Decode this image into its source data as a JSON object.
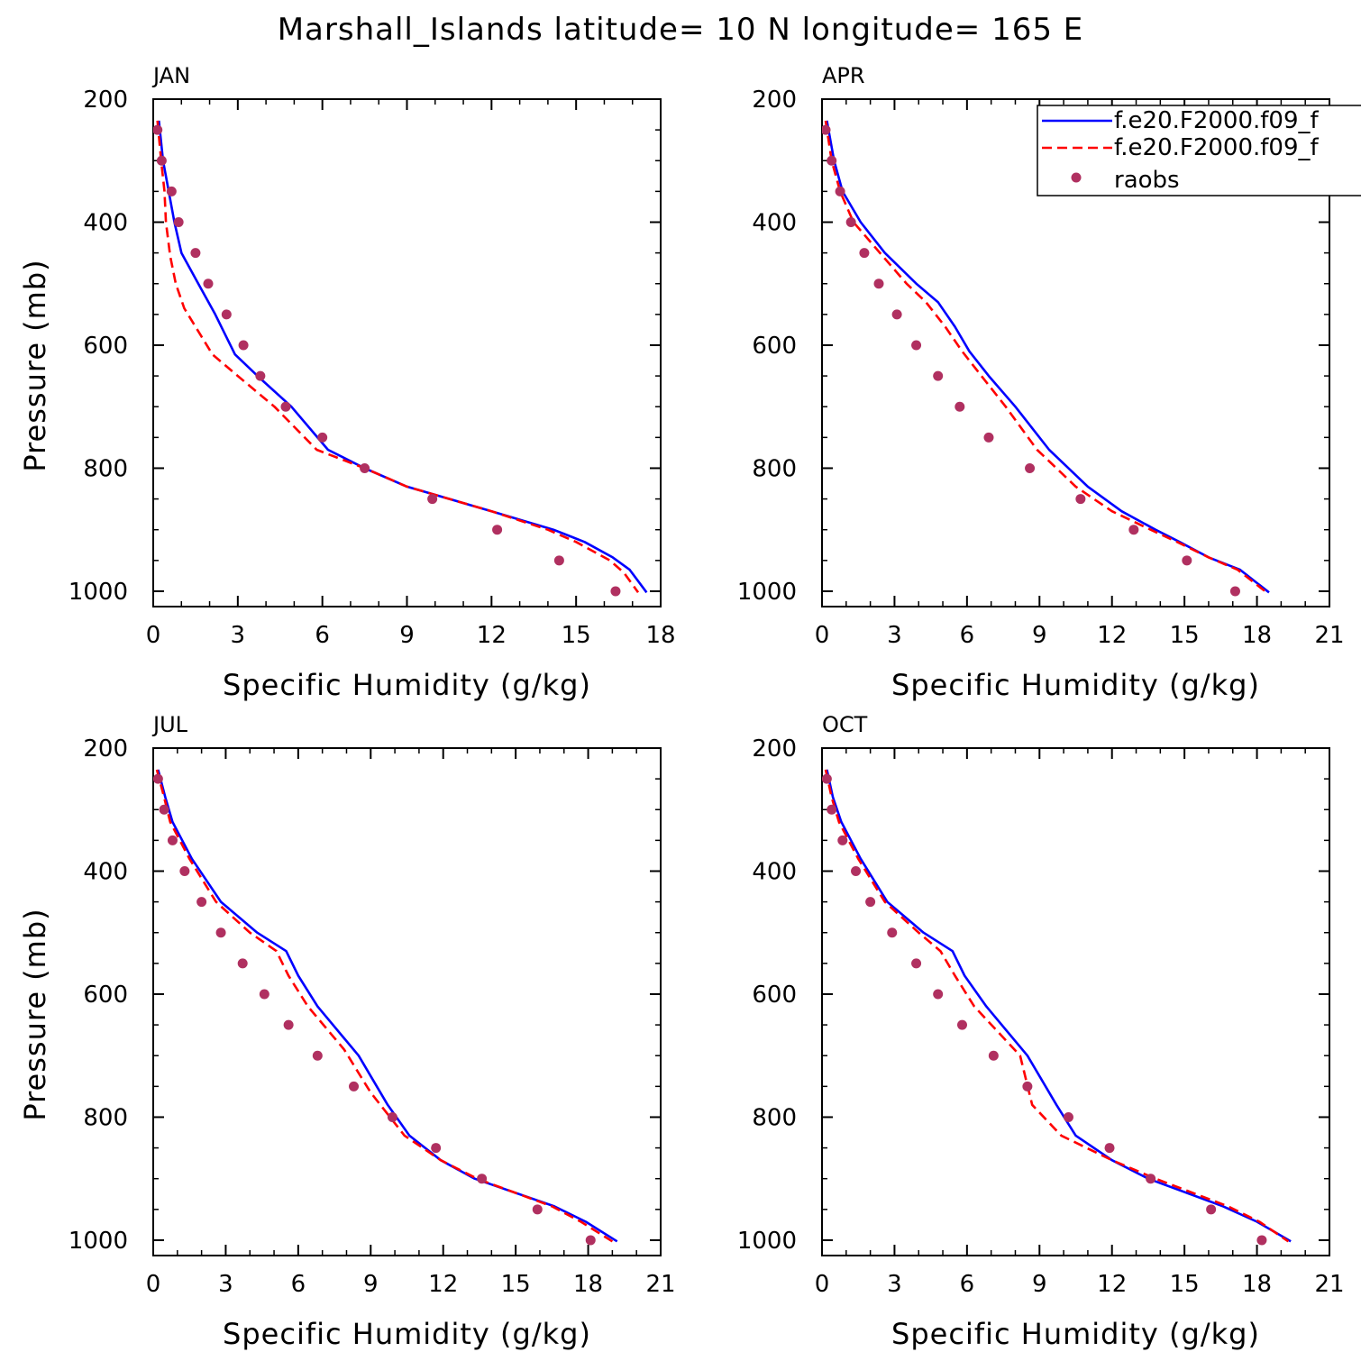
{
  "title": "Marshall_Islands  latitude= 10 N longitude= 165 E",
  "colors": {
    "model1": "#0000ff",
    "model2": "#ff0000",
    "raobs": "#b03060"
  },
  "legend": {
    "entries": [
      {
        "label": "f.e20.F2000.f09_f",
        "style": "solid"
      },
      {
        "label": "f.e20.F2000.f09_f",
        "style": "dashed"
      },
      {
        "label": "raobs",
        "style": "marker"
      }
    ]
  },
  "chart_data": [
    {
      "type": "line",
      "panel": "JAN",
      "xlabel": "Specific Humidity (g/kg)",
      "ylabel": "Pressure (mb)",
      "xlim": [
        0,
        18
      ],
      "ylim": [
        200,
        1025
      ],
      "x_ticks": [
        0,
        3,
        6,
        9,
        12,
        15,
        18
      ],
      "y_ticks": [
        200,
        400,
        600,
        800,
        1000
      ],
      "y_inverted": true,
      "series": [
        {
          "p": [
            235,
            300,
            350,
            400,
            450,
            500,
            550,
            615,
            650,
            700,
            770,
            800,
            830,
            870,
            900,
            920,
            945,
            965,
            1002
          ],
          "q": [
            0.2,
            0.35,
            0.55,
            0.75,
            1.0,
            1.6,
            2.2,
            2.9,
            3.7,
            4.9,
            6.2,
            7.5,
            9.0,
            12.0,
            14.2,
            15.3,
            16.3,
            16.9,
            17.5
          ]
        },
        {
          "p": [
            235,
            300,
            350,
            400,
            455,
            500,
            540,
            615,
            650,
            700,
            770,
            800,
            830,
            870,
            900,
            920,
            950,
            970,
            1002
          ],
          "q": [
            0.15,
            0.28,
            0.4,
            0.45,
            0.6,
            0.8,
            1.1,
            2.1,
            3.0,
            4.3,
            5.8,
            7.5,
            9.0,
            12.0,
            14.0,
            15.0,
            16.2,
            16.7,
            17.2
          ]
        },
        {
          "p": [
            250,
            300,
            350,
            400,
            450,
            500,
            550,
            600,
            650,
            700,
            750,
            800,
            850,
            900,
            950,
            1000
          ],
          "q": [
            0.15,
            0.3,
            0.65,
            0.9,
            1.5,
            1.95,
            2.6,
            3.2,
            3.8,
            4.7,
            6.0,
            7.5,
            9.9,
            12.2,
            14.4,
            16.4
          ]
        }
      ]
    },
    {
      "type": "line",
      "panel": "APR",
      "xlabel": "Specific Humidity (g/kg)",
      "ylabel": "",
      "xlim": [
        0,
        21
      ],
      "ylim": [
        200,
        1025
      ],
      "x_ticks": [
        0,
        3,
        6,
        9,
        12,
        15,
        18,
        21
      ],
      "y_ticks": [
        200,
        400,
        600,
        800,
        1000
      ],
      "y_inverted": true,
      "series": [
        {
          "p": [
            235,
            300,
            350,
            400,
            450,
            500,
            530,
            570,
            610,
            650,
            700,
            770,
            830,
            870,
            900,
            920,
            945,
            965,
            1002
          ],
          "q": [
            0.2,
            0.5,
            0.85,
            1.6,
            2.6,
            3.9,
            4.8,
            5.5,
            6.1,
            6.9,
            8.0,
            9.4,
            11.0,
            12.4,
            13.8,
            14.8,
            16.0,
            17.3,
            18.5
          ]
        },
        {
          "p": [
            235,
            300,
            350,
            400,
            450,
            500,
            530,
            570,
            610,
            650,
            700,
            770,
            830,
            870,
            900,
            920,
            945,
            965,
            1002
          ],
          "q": [
            0.15,
            0.4,
            0.75,
            1.3,
            2.4,
            3.5,
            4.3,
            5.1,
            5.8,
            6.6,
            7.6,
            8.9,
            10.5,
            12.0,
            13.6,
            14.7,
            16.0,
            17.2,
            18.4
          ]
        },
        {
          "p": [
            250,
            300,
            350,
            400,
            450,
            500,
            550,
            600,
            650,
            700,
            750,
            800,
            850,
            900,
            950,
            1000
          ],
          "q": [
            0.15,
            0.4,
            0.75,
            1.2,
            1.75,
            2.35,
            3.1,
            3.9,
            4.8,
            5.7,
            6.9,
            8.6,
            10.7,
            12.9,
            15.1,
            17.1
          ]
        }
      ]
    },
    {
      "type": "line",
      "panel": "JUL",
      "xlabel": "Specific Humidity (g/kg)",
      "ylabel": "Pressure (mb)",
      "xlim": [
        0,
        21
      ],
      "ylim": [
        200,
        1025
      ],
      "x_ticks": [
        0,
        3,
        6,
        9,
        12,
        15,
        18,
        21
      ],
      "y_ticks": [
        200,
        400,
        600,
        800,
        1000
      ],
      "y_inverted": true,
      "series": [
        {
          "p": [
            235,
            280,
            320,
            380,
            450,
            500,
            530,
            570,
            620,
            700,
            780,
            830,
            870,
            900,
            945,
            970,
            1002
          ],
          "q": [
            0.2,
            0.5,
            0.8,
            1.6,
            2.8,
            4.3,
            5.5,
            6.0,
            6.8,
            8.5,
            9.7,
            10.6,
            11.9,
            13.3,
            16.6,
            17.9,
            19.2
          ]
        },
        {
          "p": [
            235,
            280,
            320,
            380,
            450,
            500,
            530,
            570,
            620,
            690,
            760,
            830,
            870,
            900,
            945,
            970,
            1002
          ],
          "q": [
            0.15,
            0.45,
            0.7,
            1.5,
            2.6,
            4.0,
            5.1,
            5.6,
            6.4,
            7.9,
            9.0,
            10.4,
            11.9,
            13.4,
            16.5,
            17.7,
            19.0
          ]
        },
        {
          "p": [
            250,
            300,
            350,
            400,
            450,
            500,
            550,
            600,
            650,
            700,
            750,
            800,
            850,
            900,
            950,
            1000
          ],
          "q": [
            0.2,
            0.45,
            0.8,
            1.3,
            2.0,
            2.8,
            3.7,
            4.6,
            5.6,
            6.8,
            8.3,
            9.9,
            11.7,
            13.6,
            15.9,
            18.1
          ]
        }
      ]
    },
    {
      "type": "line",
      "panel": "OCT",
      "xlabel": "Specific Humidity (g/kg)",
      "ylabel": "",
      "xlim": [
        0,
        21
      ],
      "ylim": [
        200,
        1025
      ],
      "x_ticks": [
        0,
        3,
        6,
        9,
        12,
        15,
        18,
        21
      ],
      "y_ticks": [
        200,
        400,
        600,
        800,
        1000
      ],
      "y_inverted": true,
      "series": [
        {
          "p": [
            235,
            280,
            320,
            380,
            450,
            500,
            530,
            570,
            620,
            700,
            780,
            830,
            870,
            900,
            945,
            970,
            1002
          ],
          "q": [
            0.2,
            0.45,
            0.8,
            1.6,
            2.7,
            4.2,
            5.4,
            5.9,
            6.8,
            8.5,
            9.7,
            10.5,
            12.0,
            13.5,
            16.6,
            18.0,
            19.4
          ]
        },
        {
          "p": [
            235,
            280,
            320,
            380,
            450,
            500,
            530,
            570,
            620,
            700,
            780,
            830,
            870,
            900,
            945,
            970,
            1002
          ],
          "q": [
            0.15,
            0.4,
            0.7,
            1.5,
            2.6,
            4.0,
            4.9,
            5.5,
            6.3,
            8.2,
            8.7,
            9.9,
            12.0,
            13.8,
            16.8,
            18.1,
            19.3
          ]
        },
        {
          "p": [
            250,
            300,
            350,
            400,
            450,
            500,
            550,
            600,
            650,
            700,
            750,
            800,
            850,
            900,
            950,
            1000
          ],
          "q": [
            0.2,
            0.4,
            0.85,
            1.4,
            2.0,
            2.9,
            3.9,
            4.8,
            5.8,
            7.1,
            8.5,
            10.2,
            11.9,
            13.6,
            16.1,
            18.2
          ]
        }
      ]
    }
  ]
}
